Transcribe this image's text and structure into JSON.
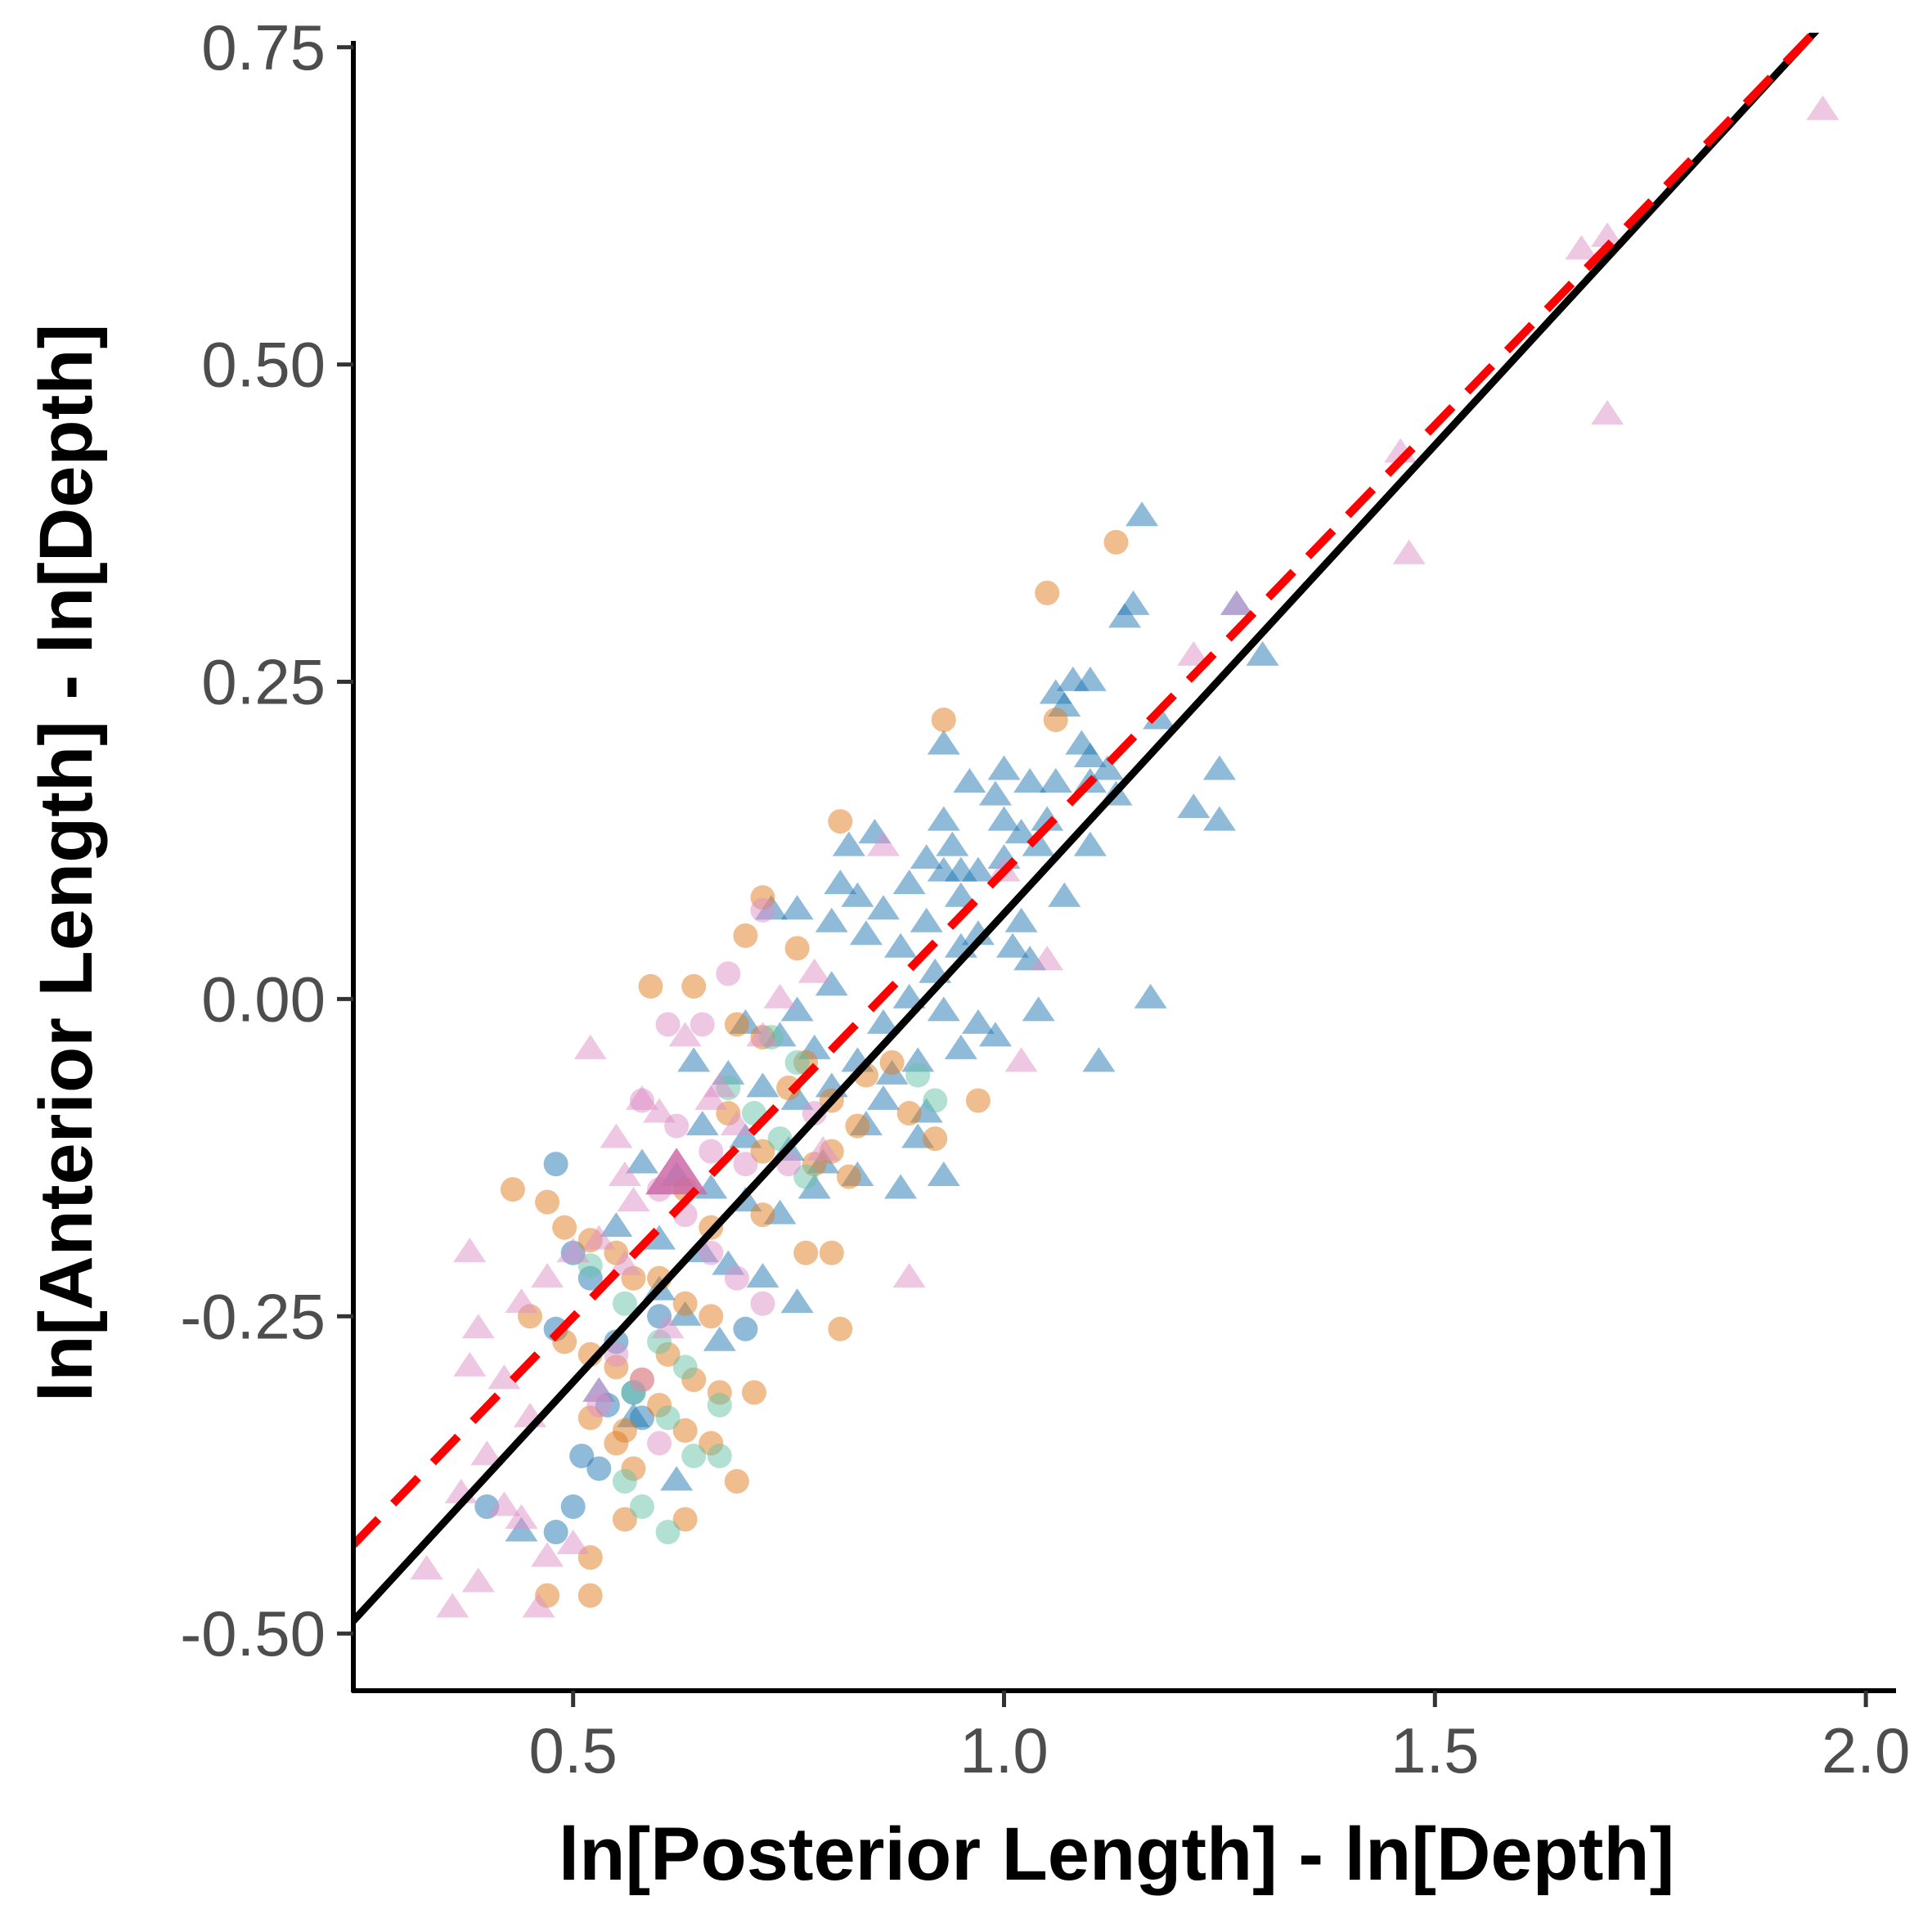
{
  "chart_data": {
    "type": "scatter",
    "xlabel": "ln[Posterior Length] - ln[Depth]",
    "ylabel": "ln[Anterior Length] - ln[Depth]",
    "xlim": [
      0.245,
      2.035
    ],
    "ylim": [
      -0.545,
      0.755
    ],
    "x_ticks": [
      {
        "value": 0.5,
        "label": "0.5"
      },
      {
        "value": 1.0,
        "label": "1.0"
      },
      {
        "value": 1.5,
        "label": "1.5"
      },
      {
        "value": 2.0,
        "label": "2.0"
      }
    ],
    "y_ticks": [
      {
        "value": -0.5,
        "label": "-0.50"
      },
      {
        "value": -0.25,
        "label": "-0.25"
      },
      {
        "value": 0.0,
        "label": "0.00"
      },
      {
        "value": 0.25,
        "label": "0.25"
      },
      {
        "value": 0.5,
        "label": "0.50"
      },
      {
        "value": 0.75,
        "label": "0.75"
      }
    ],
    "grid": false,
    "legend": "none",
    "series": [
      {
        "marker": "triangle",
        "color": "#1f77b4",
        "points": [
          [
            1.16,
            0.38
          ],
          [
            1.15,
            0.31
          ],
          [
            1.14,
            0.3
          ],
          [
            1.27,
            0.31
          ],
          [
            1.3,
            0.27
          ],
          [
            1.06,
            0.24
          ],
          [
            1.08,
            0.25
          ],
          [
            1.1,
            0.25
          ],
          [
            1.07,
            0.23
          ],
          [
            1.18,
            0.22
          ],
          [
            0.93,
            0.2
          ],
          [
            1.09,
            0.2
          ],
          [
            1.1,
            0.19
          ],
          [
            1.12,
            0.18
          ],
          [
            1.25,
            0.18
          ],
          [
            0.96,
            0.17
          ],
          [
            1.0,
            0.18
          ],
          [
            1.03,
            0.17
          ],
          [
            1.06,
            0.17
          ],
          [
            1.1,
            0.17
          ],
          [
            1.13,
            0.16
          ],
          [
            1.22,
            0.15
          ],
          [
            1.25,
            0.14
          ],
          [
            0.99,
            0.16
          ],
          [
            0.85,
            0.13
          ],
          [
            0.93,
            0.14
          ],
          [
            0.94,
            0.12
          ],
          [
            1.0,
            0.14
          ],
          [
            1.02,
            0.13
          ],
          [
            1.05,
            0.14
          ],
          [
            0.82,
            0.12
          ],
          [
            0.91,
            0.11
          ],
          [
            0.95,
            0.1
          ],
          [
            0.97,
            0.1
          ],
          [
            1.0,
            0.11
          ],
          [
            1.04,
            0.12
          ],
          [
            1.1,
            0.12
          ],
          [
            0.81,
            0.09
          ],
          [
            0.89,
            0.09
          ],
          [
            0.93,
            0.1
          ],
          [
            0.95,
            0.08
          ],
          [
            1.07,
            0.08
          ],
          [
            0.76,
            0.07
          ],
          [
            0.83,
            0.08
          ],
          [
            0.86,
            0.07
          ],
          [
            0.91,
            0.06
          ],
          [
            0.97,
            0.05
          ],
          [
            1.02,
            0.06
          ],
          [
            0.73,
            0.07
          ],
          [
            0.8,
            0.06
          ],
          [
            0.84,
            0.05
          ],
          [
            0.88,
            0.04
          ],
          [
            0.92,
            0.02
          ],
          [
            0.95,
            0.04
          ],
          [
            1.01,
            0.04
          ],
          [
            1.03,
            0.03
          ],
          [
            0.76,
            -0.01
          ],
          [
            0.8,
            0.01
          ],
          [
            0.86,
            -0.02
          ],
          [
            0.89,
            0.0
          ],
          [
            0.93,
            -0.01
          ],
          [
            0.97,
            -0.02
          ],
          [
            1.04,
            -0.01
          ],
          [
            1.17,
            0.0
          ],
          [
            0.7,
            -0.02
          ],
          [
            0.74,
            -0.03
          ],
          [
            0.78,
            -0.04
          ],
          [
            0.83,
            -0.05
          ],
          [
            0.87,
            -0.06
          ],
          [
            0.9,
            -0.05
          ],
          [
            0.95,
            -0.04
          ],
          [
            0.99,
            -0.03
          ],
          [
            1.11,
            -0.05
          ],
          [
            0.64,
            -0.05
          ],
          [
            0.68,
            -0.06
          ],
          [
            0.72,
            -0.07
          ],
          [
            0.76,
            -0.08
          ],
          [
            0.8,
            -0.07
          ],
          [
            0.86,
            -0.08
          ],
          [
            0.91,
            -0.09
          ],
          [
            0.65,
            -0.1
          ],
          [
            0.7,
            -0.11
          ],
          [
            0.75,
            -0.12
          ],
          [
            0.79,
            -0.13
          ],
          [
            0.84,
            -0.1
          ],
          [
            0.9,
            -0.11
          ],
          [
            0.58,
            -0.13
          ],
          [
            0.62,
            -0.14
          ],
          [
            0.66,
            -0.15
          ],
          [
            0.7,
            -0.16
          ],
          [
            0.74,
            -0.17
          ],
          [
            0.78,
            -0.15
          ],
          [
            0.83,
            -0.14
          ],
          [
            0.88,
            -0.15
          ],
          [
            0.93,
            -0.14
          ],
          [
            0.55,
            -0.18
          ],
          [
            0.6,
            -0.19
          ],
          [
            0.65,
            -0.2
          ],
          [
            0.68,
            -0.21
          ],
          [
            0.72,
            -0.22
          ],
          [
            0.76,
            -0.24
          ],
          [
            0.6,
            -0.23
          ],
          [
            0.63,
            -0.25
          ],
          [
            0.67,
            -0.27
          ],
          [
            0.53,
            -0.31
          ],
          [
            0.57,
            -0.33
          ],
          [
            0.62,
            -0.38
          ],
          [
            0.44,
            -0.42
          ]
        ]
      },
      {
        "marker": "circle",
        "color": "#1f77b4",
        "points": [
          [
            0.48,
            -0.13
          ],
          [
            0.5,
            -0.2
          ],
          [
            0.52,
            -0.22
          ],
          [
            0.48,
            -0.26
          ],
          [
            0.55,
            -0.27
          ],
          [
            0.54,
            -0.32
          ],
          [
            0.57,
            -0.31
          ],
          [
            0.51,
            -0.36
          ],
          [
            0.53,
            -0.37
          ],
          [
            0.5,
            -0.4
          ],
          [
            0.48,
            -0.42
          ],
          [
            0.4,
            -0.4
          ],
          [
            0.58,
            -0.33
          ],
          [
            0.6,
            -0.25
          ],
          [
            0.7,
            -0.26
          ]
        ]
      },
      {
        "marker": "circle",
        "color": "#e07b1e",
        "points": [
          [
            1.13,
            0.36
          ],
          [
            1.05,
            0.32
          ],
          [
            0.93,
            0.22
          ],
          [
            1.06,
            0.22
          ],
          [
            0.81,
            0.14
          ],
          [
            0.72,
            0.08
          ],
          [
            0.76,
            0.04
          ],
          [
            0.7,
            0.05
          ],
          [
            0.59,
            0.01
          ],
          [
            0.64,
            0.01
          ],
          [
            0.69,
            -0.02
          ],
          [
            0.72,
            -0.03
          ],
          [
            0.77,
            -0.05
          ],
          [
            0.84,
            -0.06
          ],
          [
            0.87,
            -0.05
          ],
          [
            0.75,
            -0.07
          ],
          [
            0.8,
            -0.08
          ],
          [
            0.83,
            -0.1
          ],
          [
            0.89,
            -0.09
          ],
          [
            0.92,
            -0.11
          ],
          [
            0.97,
            -0.08
          ],
          [
            0.68,
            -0.09
          ],
          [
            0.72,
            -0.12
          ],
          [
            0.78,
            -0.13
          ],
          [
            0.82,
            -0.14
          ],
          [
            0.63,
            -0.15
          ],
          [
            0.66,
            -0.18
          ],
          [
            0.72,
            -0.17
          ],
          [
            0.77,
            -0.2
          ],
          [
            0.8,
            -0.2
          ],
          [
            0.43,
            -0.15
          ],
          [
            0.47,
            -0.16
          ],
          [
            0.49,
            -0.18
          ],
          [
            0.52,
            -0.19
          ],
          [
            0.55,
            -0.2
          ],
          [
            0.57,
            -0.22
          ],
          [
            0.6,
            -0.22
          ],
          [
            0.63,
            -0.24
          ],
          [
            0.66,
            -0.25
          ],
          [
            0.45,
            -0.25
          ],
          [
            0.49,
            -0.27
          ],
          [
            0.52,
            -0.28
          ],
          [
            0.55,
            -0.29
          ],
          [
            0.58,
            -0.3
          ],
          [
            0.61,
            -0.28
          ],
          [
            0.64,
            -0.3
          ],
          [
            0.67,
            -0.31
          ],
          [
            0.71,
            -0.31
          ],
          [
            0.52,
            -0.33
          ],
          [
            0.56,
            -0.34
          ],
          [
            0.6,
            -0.32
          ],
          [
            0.63,
            -0.34
          ],
          [
            0.66,
            -0.35
          ],
          [
            0.69,
            -0.38
          ],
          [
            0.55,
            -0.35
          ],
          [
            0.57,
            -0.37
          ],
          [
            0.52,
            -0.44
          ],
          [
            0.56,
            -0.41
          ],
          [
            0.63,
            -0.41
          ],
          [
            0.47,
            -0.47
          ],
          [
            0.52,
            -0.47
          ],
          [
            0.81,
            -0.26
          ],
          [
            0.8,
            -0.12
          ]
        ]
      },
      {
        "marker": "circle",
        "color": "#66c2a5",
        "points": [
          [
            0.73,
            -0.03
          ],
          [
            0.76,
            -0.05
          ],
          [
            0.68,
            -0.07
          ],
          [
            0.71,
            -0.09
          ],
          [
            0.74,
            -0.11
          ],
          [
            0.77,
            -0.14
          ],
          [
            0.52,
            -0.21
          ],
          [
            0.56,
            -0.24
          ],
          [
            0.6,
            -0.27
          ],
          [
            0.63,
            -0.29
          ],
          [
            0.57,
            -0.31
          ],
          [
            0.61,
            -0.33
          ],
          [
            0.64,
            -0.36
          ],
          [
            0.67,
            -0.36
          ],
          [
            0.56,
            -0.38
          ],
          [
            0.58,
            -0.4
          ],
          [
            0.61,
            -0.42
          ],
          [
            0.67,
            -0.32
          ],
          [
            0.9,
            -0.06
          ],
          [
            0.92,
            -0.08
          ]
        ]
      },
      {
        "marker": "circle",
        "color": "#de8fc7",
        "points": [
          [
            0.72,
            0.07
          ],
          [
            0.68,
            0.02
          ],
          [
            0.65,
            -0.02
          ],
          [
            0.61,
            -0.02
          ],
          [
            0.58,
            -0.08
          ],
          [
            0.62,
            -0.1
          ],
          [
            0.66,
            -0.12
          ],
          [
            0.7,
            -0.13
          ],
          [
            0.6,
            -0.15
          ],
          [
            0.63,
            -0.17
          ],
          [
            0.66,
            -0.2
          ],
          [
            0.69,
            -0.22
          ],
          [
            0.72,
            -0.24
          ],
          [
            0.55,
            -0.28
          ],
          [
            0.58,
            -0.3
          ],
          [
            0.53,
            -0.32
          ],
          [
            0.6,
            -0.35
          ],
          [
            0.75,
            -0.13
          ],
          [
            0.78,
            -0.09
          ]
        ]
      },
      {
        "marker": "triangle",
        "color": "#de8fc7",
        "points": [
          [
            1.95,
            0.7
          ],
          [
            1.67,
            0.59
          ],
          [
            1.7,
            0.6
          ],
          [
            1.7,
            0.46
          ],
          [
            1.46,
            0.43
          ],
          [
            1.47,
            0.35
          ],
          [
            1.27,
            0.31
          ],
          [
            1.22,
            0.27
          ],
          [
            1.0,
            0.1
          ],
          [
            1.05,
            0.03
          ],
          [
            1.02,
            -0.05
          ],
          [
            0.86,
            0.12
          ],
          [
            0.78,
            0.02
          ],
          [
            0.74,
            0.0
          ],
          [
            0.72,
            -0.03
          ],
          [
            0.67,
            -0.07
          ],
          [
            0.63,
            -0.03
          ],
          [
            0.58,
            -0.08
          ],
          [
            0.55,
            -0.11
          ],
          [
            0.56,
            -0.14
          ],
          [
            0.57,
            -0.16
          ],
          [
            0.53,
            -0.19
          ],
          [
            0.5,
            -0.2
          ],
          [
            0.47,
            -0.22
          ],
          [
            0.44,
            -0.24
          ],
          [
            0.39,
            -0.26
          ],
          [
            0.38,
            -0.29
          ],
          [
            0.42,
            -0.3
          ],
          [
            0.45,
            -0.33
          ],
          [
            0.4,
            -0.36
          ],
          [
            0.37,
            -0.39
          ],
          [
            0.42,
            -0.4
          ],
          [
            0.44,
            -0.41
          ],
          [
            0.33,
            -0.45
          ],
          [
            0.36,
            -0.48
          ],
          [
            0.39,
            -0.46
          ],
          [
            0.47,
            -0.44
          ],
          [
            0.5,
            -0.43
          ],
          [
            0.46,
            -0.48
          ],
          [
            0.53,
            -0.31
          ],
          [
            0.6,
            -0.09
          ],
          [
            0.52,
            -0.04
          ],
          [
            0.61,
            -0.26
          ],
          [
            0.66,
            -0.08
          ],
          [
            0.69,
            -0.1
          ],
          [
            0.79,
            -0.12
          ],
          [
            0.89,
            -0.22
          ],
          [
            0.38,
            -0.2
          ],
          [
            0.56,
            -0.21
          ]
        ]
      },
      {
        "marker": "triangle-large",
        "color": "#cc6aa8",
        "points": [
          [
            0.62,
            -0.14
          ]
        ]
      }
    ],
    "lines": [
      {
        "style": "solid",
        "color": "#000000",
        "x": [
          0.245,
          1.945
        ],
        "y": [
          -0.49,
          0.765
        ]
      },
      {
        "style": "dashed",
        "color": "#ff0000",
        "x": [
          0.245,
          1.945
        ],
        "y": [
          -0.43,
          0.765
        ]
      }
    ]
  }
}
